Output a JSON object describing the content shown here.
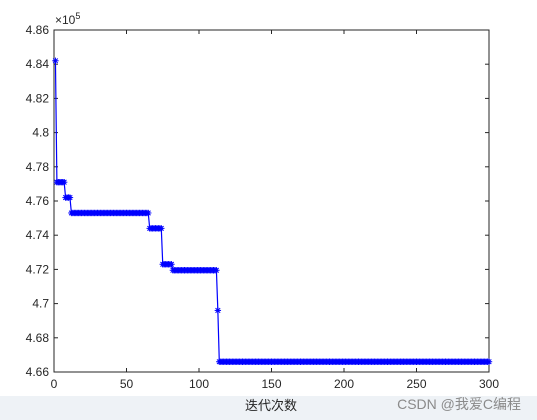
{
  "chart_data": {
    "type": "line",
    "xlabel": "迭代次数",
    "ylabel": "",
    "title": "",
    "xlim": [
      0,
      300
    ],
    "ylim": [
      4.66,
      4.86
    ],
    "exponent_label": "×10",
    "exponent_power": "5",
    "xticks": [
      0,
      50,
      100,
      150,
      200,
      250,
      300
    ],
    "yticks": [
      4.66,
      4.68,
      4.7,
      4.72,
      4.74,
      4.76,
      4.78,
      4.8,
      4.82,
      4.84,
      4.86
    ],
    "ytick_labels": [
      "4.66",
      "4.68",
      "4.7",
      "4.72",
      "4.74",
      "4.76",
      "4.78",
      "4.8",
      "4.82",
      "4.84",
      "4.86"
    ],
    "grid": false,
    "series": [
      {
        "marker": "asterisk",
        "color": "#0000ff",
        "segments": [
          {
            "from": 1,
            "to": 1,
            "value": 4.842
          },
          {
            "from": 2,
            "to": 7,
            "value": 4.771
          },
          {
            "from": 8,
            "to": 11,
            "value": 4.762
          },
          {
            "from": 12,
            "to": 65,
            "value": 4.753
          },
          {
            "from": 66,
            "to": 74,
            "value": 4.744
          },
          {
            "from": 75,
            "to": 81,
            "value": 4.723
          },
          {
            "from": 82,
            "to": 112,
            "value": 4.7195
          },
          {
            "from": 113,
            "to": 113,
            "value": 4.696
          },
          {
            "from": 114,
            "to": 300,
            "value": 4.666
          }
        ]
      }
    ]
  },
  "watermark": "CSDN @我爱C编程"
}
